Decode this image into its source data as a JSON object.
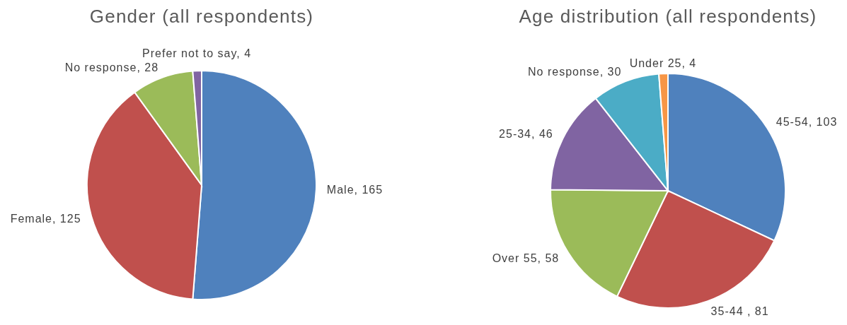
{
  "chart_data": [
    {
      "type": "pie",
      "title": "Gender (all respondents)",
      "categories": [
        "Male, 165",
        "Female, 125",
        "No response, 28",
        "Prefer not to say, 4"
      ],
      "values": [
        165,
        125,
        28,
        4
      ],
      "colors": [
        "#4f81bd",
        "#c0504d",
        "#9bbb59",
        "#8064a2"
      ]
    },
    {
      "type": "pie",
      "title": "Age distribution (all respondents)",
      "categories": [
        "45-54, 103",
        "35-44 , 81",
        "Over 55, 58",
        "25-34, 46",
        "No response, 30",
        "Under 25, 4"
      ],
      "values": [
        103,
        81,
        58,
        46,
        30,
        4
      ],
      "colors": [
        "#4f81bd",
        "#c0504d",
        "#9bbb59",
        "#8064a2",
        "#4bacc6",
        "#f79646"
      ]
    }
  ]
}
